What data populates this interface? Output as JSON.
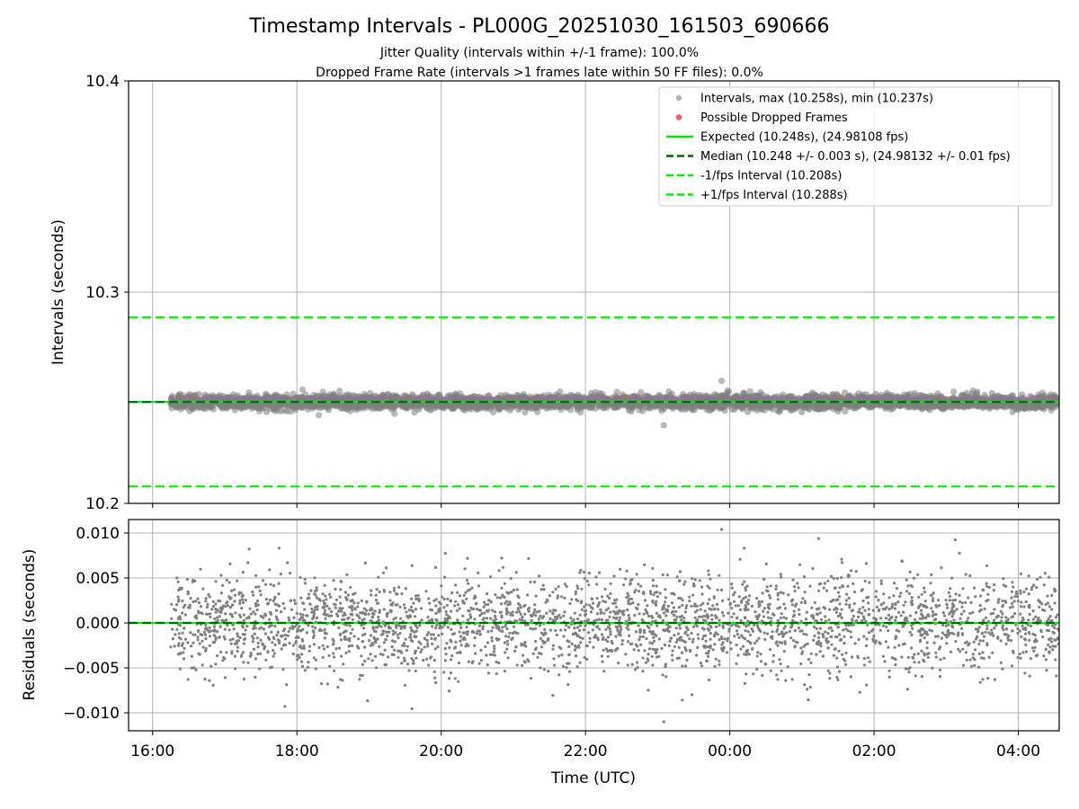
{
  "figure": {
    "title": "Timestamp Intervals - PL000G_20251030_161503_690666",
    "subtitle_1": "Jitter Quality (intervals within +/-1 frame): 100.0%",
    "subtitle_2": "Dropped Frame Rate (intervals >1 frames late within 50 FF files): 0.0%"
  },
  "colors": {
    "points": "#808080",
    "dropped": "#f05a5a",
    "expected": "#00ee00",
    "median": "#006400",
    "bounds": "#00ee00",
    "grid": "#b0b0b0"
  },
  "chart_data": [
    {
      "type": "scatter",
      "panel": "intervals",
      "ylabel": "Intervals (seconds)",
      "ylim": [
        10.2,
        10.4
      ],
      "yticks": [
        "10.2",
        "10.3",
        "10.4"
      ],
      "xlim": [
        "15:40",
        "04:34"
      ],
      "xtick_labels": [
        "16:00",
        "18:00",
        "20:00",
        "22:00",
        "00:00",
        "02:00",
        "04:00"
      ],
      "grid": true,
      "legend_position": "upper right",
      "legend": [
        "Intervals, max (10.258s), min (10.237s)",
        "Possible Dropped Frames",
        "Expected (10.248s), (24.98108 fps)",
        "Median (10.248 +/- 0.003 s), (24.98132 +/- 0.01 fps)",
        "-1/fps Interval (10.208s)",
        "+1/fps Interval (10.288s)"
      ],
      "series": [
        {
          "name": "Intervals, max (10.258s), min (10.237s)",
          "x_range": [
            "16:15",
            "04:34"
          ],
          "y_range": [
            10.237,
            10.258
          ],
          "center": 10.248,
          "approx_std": 0.003,
          "count": 4300
        },
        {
          "name": "Possible Dropped Frames",
          "count": 0
        }
      ],
      "hlines": [
        {
          "name": "Expected (10.248s), (24.98108 fps)",
          "y": 10.248,
          "style": "solid"
        },
        {
          "name": "Median (10.248 +/- 0.003 s), (24.98132 +/- 0.01 fps)",
          "y": 10.248,
          "style": "dashed"
        },
        {
          "name": "-1/fps Interval (10.208s)",
          "y": 10.208,
          "style": "dashed"
        },
        {
          "name": "+1/fps Interval (10.288s)",
          "y": 10.288,
          "style": "dashed"
        }
      ]
    },
    {
      "type": "scatter",
      "panel": "residuals",
      "xlabel": "Time (UTC)",
      "ylabel": "Residuals (seconds)",
      "ylim": [
        -0.012,
        0.0115
      ],
      "yticks": [
        "0.010",
        "0.005",
        "0.000",
        "−0.005",
        "−0.010"
      ],
      "xlim": [
        "15:40",
        "04:34"
      ],
      "xtick_labels": [
        "16:00",
        "18:00",
        "20:00",
        "22:00",
        "00:00",
        "02:00",
        "04:00"
      ],
      "grid": true,
      "series": [
        {
          "name": "Residuals",
          "x_range": [
            "16:15",
            "04:34"
          ],
          "y_range": [
            -0.011,
            0.0104
          ],
          "center": 0.0,
          "approx_std": 0.003,
          "count": 3000
        }
      ],
      "hlines": [
        {
          "name": "Expected",
          "y": 0.0,
          "style": "solid"
        },
        {
          "name": "Median",
          "y": 0.0,
          "style": "dashed"
        }
      ]
    }
  ]
}
